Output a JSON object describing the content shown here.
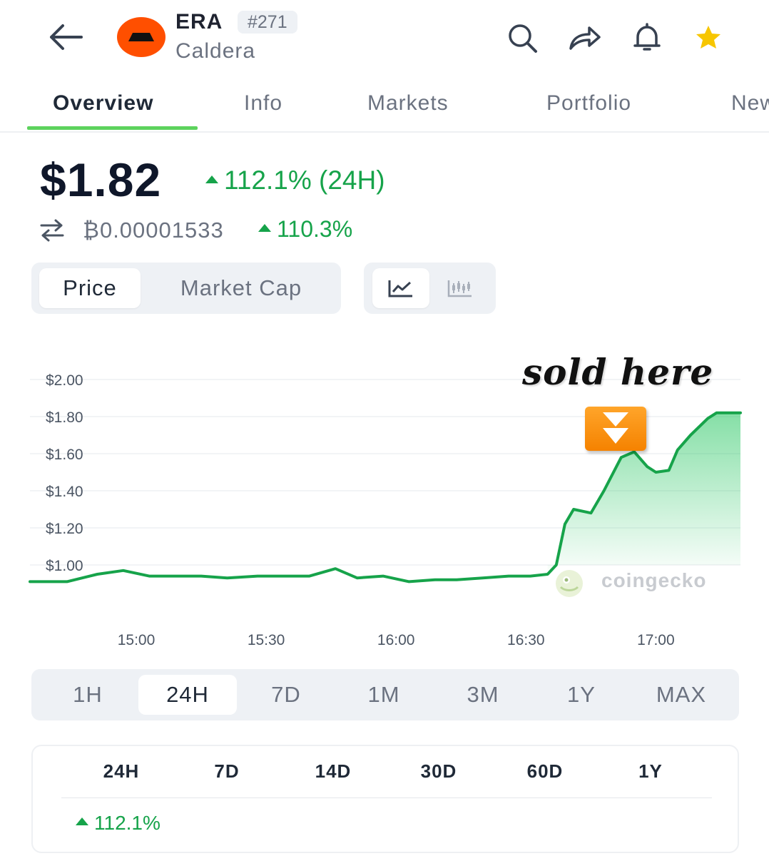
{
  "header": {
    "symbol": "ERA",
    "rank": "#271",
    "name": "Caldera",
    "icons": [
      "back-arrow-icon",
      "search-icon",
      "share-icon",
      "bell-icon",
      "star-icon"
    ],
    "star_color": "#f7c600"
  },
  "tabs": [
    {
      "label": "Overview",
      "active": true
    },
    {
      "label": "Info"
    },
    {
      "label": "Markets"
    },
    {
      "label": "Portfolio"
    },
    {
      "label": "News"
    }
  ],
  "price": {
    "value": "$1.82",
    "change_24h": "112.1% (24H)",
    "btc_value": "₿0.00001533",
    "btc_change": "110.3%"
  },
  "metric_toggle": [
    "Price",
    "Market Cap"
  ],
  "chart_type_toggle": [
    "line-chart-icon",
    "candlestick-icon"
  ],
  "chart_data": {
    "type": "area",
    "y_tick_labels": [
      "$2.00",
      "$1.80",
      "$1.60",
      "$1.40",
      "$1.20",
      "$1.00"
    ],
    "x_tick_labels": [
      "15:00",
      "15:30",
      "16:00",
      "16:30",
      "17:00"
    ],
    "ylim": [
      0.85,
      2.0
    ],
    "series": [
      {
        "x": [
          "14:39",
          "14:44",
          "14:51",
          "14:57",
          "15:03",
          "15:10",
          "15:15",
          "15:21",
          "15:28",
          "15:34",
          "15:40",
          "15:46",
          "15:51",
          "15:57",
          "16:03",
          "16:09",
          "16:14",
          "16:20",
          "16:26",
          "16:31",
          "16:35",
          "16:37",
          "16:39",
          "16:41",
          "16:45",
          "16:48",
          "16:52",
          "16:55",
          "16:58",
          "17:00",
          "17:03",
          "17:05",
          "17:08",
          "17:12",
          "17:14",
          "17:16"
        ],
        "values": [
          0.91,
          0.91,
          0.95,
          0.97,
          0.94,
          0.94,
          0.94,
          0.93,
          0.94,
          0.94,
          0.94,
          0.98,
          0.93,
          0.94,
          0.91,
          0.92,
          0.92,
          0.93,
          0.94,
          0.94,
          0.95,
          1.0,
          1.22,
          1.3,
          1.28,
          1.4,
          1.58,
          1.61,
          1.53,
          1.5,
          1.51,
          1.62,
          1.7,
          1.79,
          1.82,
          1.82
        ],
        "color": "#16a34a"
      }
    ],
    "grid": true,
    "watermark": "coingecko",
    "annotation": {
      "text": "sold here"
    }
  },
  "range_buttons": [
    "1H",
    "24H",
    "7D",
    "1M",
    "3M",
    "1Y",
    "MAX"
  ],
  "range_selected": "24H",
  "performance": {
    "headers": [
      "24H",
      "7D",
      "14D",
      "30D",
      "60D",
      "1Y"
    ],
    "values": [
      "112.1%"
    ]
  }
}
